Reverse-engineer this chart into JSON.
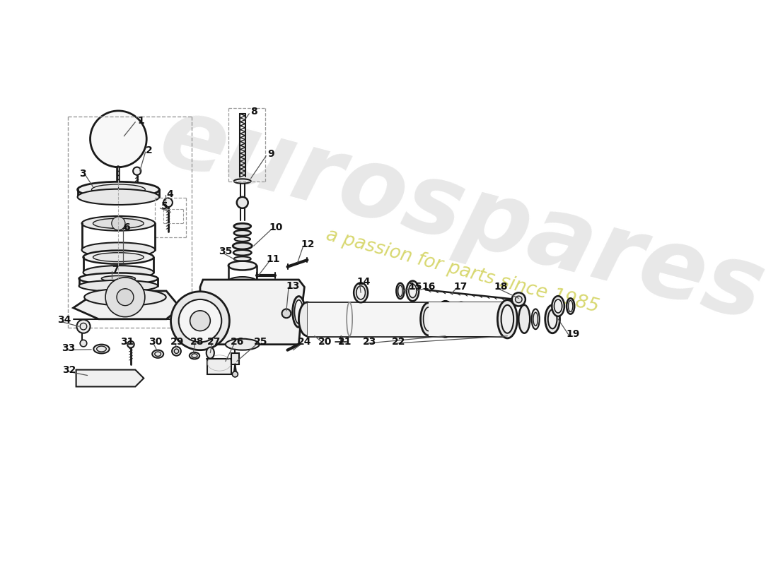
{
  "bg_color": "#ffffff",
  "line_color": "#1a1a1a",
  "watermark_main": "eurospares",
  "watermark_sub": "a passion for parts since 1985",
  "wm_color": "#e0e0e0",
  "wm_sub_color": "#d4d460"
}
